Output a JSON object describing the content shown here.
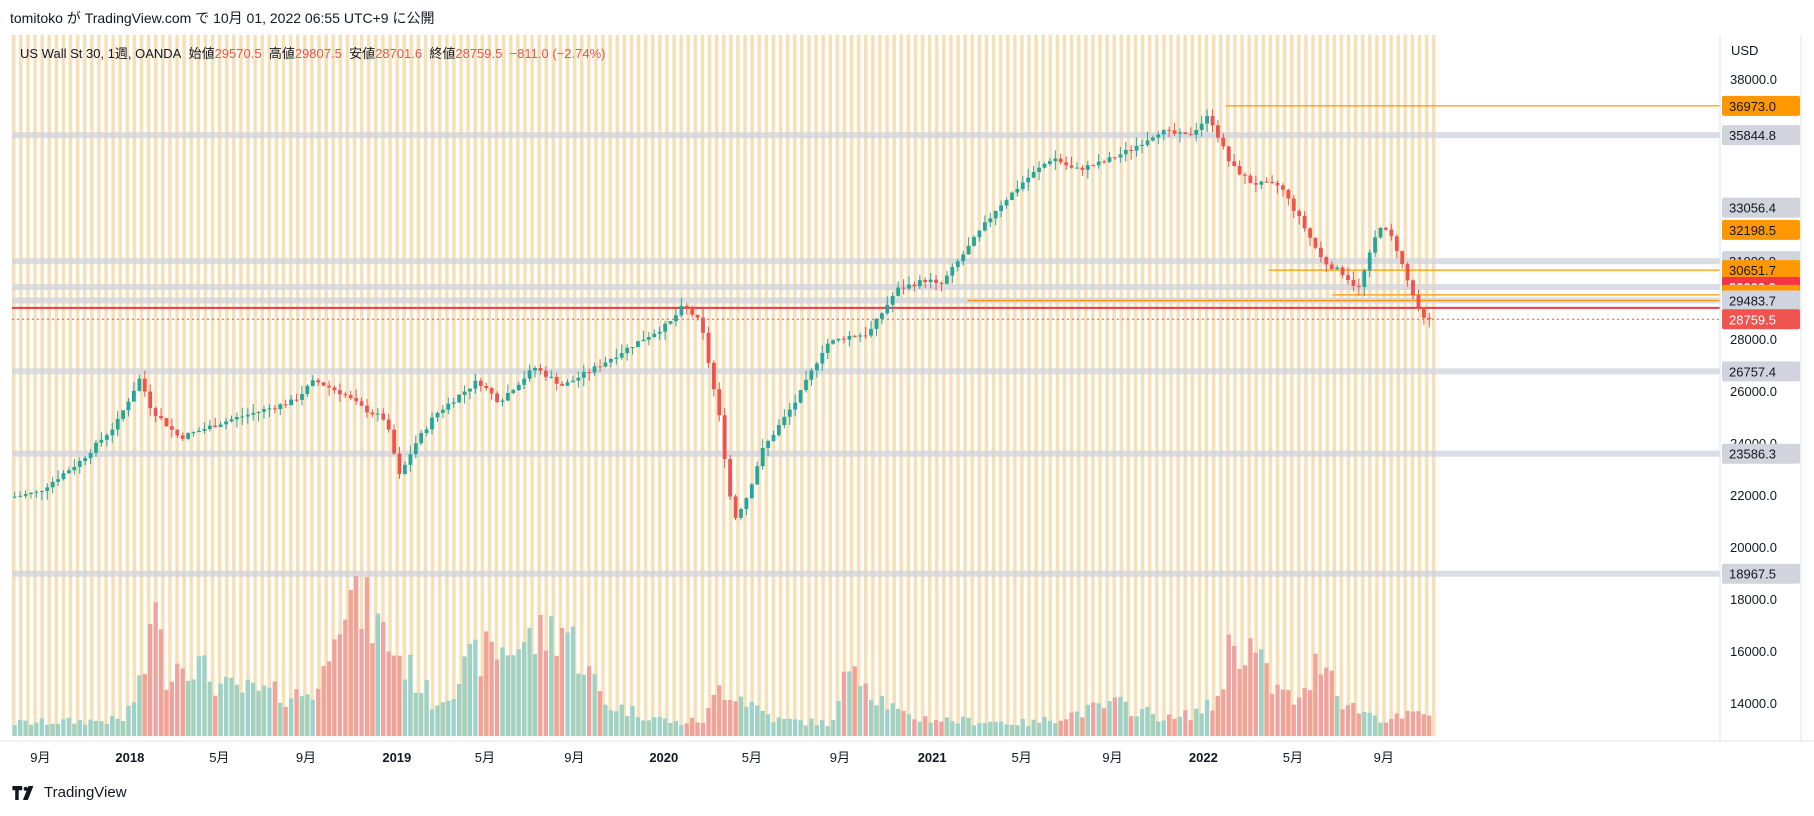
{
  "header": {
    "published_text": "tomitoko が TradingView.com で 10月 01, 2022 06:55 UTC+9 に公開"
  },
  "footer": {
    "brand": "TradingView"
  },
  "legend": {
    "symbol": "US Wall St 30, 1週, OANDA",
    "open_label": "始値",
    "open": "29570.5",
    "high_label": "高値",
    "high": "29807.5",
    "low_label": "安値",
    "low": "28701.6",
    "close_label": "終値",
    "close": "28759.5",
    "change": "−811.0 (−2.74%)"
  },
  "colors": {
    "up": "#26a69a",
    "down": "#ef5350",
    "up_volume": "#9ed2c6",
    "down_volume": "#f0a39d",
    "session_stripe": "#f6e0b5",
    "hline_gray": "#d1d4dc",
    "hline_orange": "#ff9800",
    "hline_red": "#f23645"
  },
  "chart_data": {
    "type": "candlestick",
    "currency": "USD",
    "ylim": [
      11800,
      39700
    ],
    "y_ticks": [
      "38000.0",
      "28000.0",
      "26000.0",
      "24000.0",
      "22000.0",
      "20000.0",
      "18000.0",
      "16000.0",
      "14000.0"
    ],
    "x_ticks": [
      {
        "label": "9月",
        "t": 0.02
      },
      {
        "label": "2018",
        "t": 0.083
      },
      {
        "label": "5月",
        "t": 0.146
      },
      {
        "label": "9月",
        "t": 0.207
      },
      {
        "label": "2019",
        "t": 0.271
      },
      {
        "label": "5月",
        "t": 0.333
      },
      {
        "label": "9月",
        "t": 0.396
      },
      {
        "label": "2020",
        "t": 0.459
      },
      {
        "label": "5月",
        "t": 0.521
      },
      {
        "label": "9月",
        "t": 0.583
      },
      {
        "label": "2021",
        "t": 0.648
      },
      {
        "label": "5月",
        "t": 0.711
      },
      {
        "label": "9月",
        "t": 0.775
      },
      {
        "label": "2022",
        "t": 0.839
      },
      {
        "label": "5月",
        "t": 0.902
      },
      {
        "label": "9月",
        "t": 0.966
      }
    ],
    "price_path": [
      [
        0,
        21900
      ],
      [
        0.02,
        22100
      ],
      [
        0.05,
        23300
      ],
      [
        0.075,
        24700
      ],
      [
        0.092,
        26500
      ],
      [
        0.1,
        25300
      ],
      [
        0.12,
        24200
      ],
      [
        0.15,
        24800
      ],
      [
        0.2,
        25600
      ],
      [
        0.215,
        26400
      ],
      [
        0.235,
        25900
      ],
      [
        0.25,
        25300
      ],
      [
        0.265,
        24900
      ],
      [
        0.275,
        22700
      ],
      [
        0.285,
        23900
      ],
      [
        0.3,
        25100
      ],
      [
        0.33,
        26400
      ],
      [
        0.345,
        25600
      ],
      [
        0.37,
        26900
      ],
      [
        0.39,
        26200
      ],
      [
        0.41,
        26800
      ],
      [
        0.44,
        27800
      ],
      [
        0.465,
        28600
      ],
      [
        0.475,
        29300
      ],
      [
        0.487,
        28600
      ],
      [
        0.5,
        25000
      ],
      [
        0.51,
        21000
      ],
      [
        0.52,
        22000
      ],
      [
        0.53,
        23700
      ],
      [
        0.555,
        25700
      ],
      [
        0.575,
        27800
      ],
      [
        0.59,
        28100
      ],
      [
        0.605,
        28200
      ],
      [
        0.625,
        29900
      ],
      [
        0.647,
        30300
      ],
      [
        0.655,
        30000
      ],
      [
        0.675,
        31500
      ],
      [
        0.695,
        33000
      ],
      [
        0.715,
        34100
      ],
      [
        0.735,
        35000
      ],
      [
        0.75,
        34500
      ],
      [
        0.77,
        34800
      ],
      [
        0.79,
        35300
      ],
      [
        0.81,
        36000
      ],
      [
        0.83,
        35800
      ],
      [
        0.845,
        36600
      ],
      [
        0.86,
        34700
      ],
      [
        0.875,
        34000
      ],
      [
        0.895,
        33900
      ],
      [
        0.91,
        32500
      ],
      [
        0.925,
        31000
      ],
      [
        0.94,
        30500
      ],
      [
        0.95,
        29900
      ],
      [
        0.965,
        32400
      ],
      [
        0.975,
        31800
      ],
      [
        0.985,
        30200
      ],
      [
        0.995,
        28760
      ]
    ],
    "volume_path": [
      [
        0,
        0.08
      ],
      [
        0.08,
        0.1
      ],
      [
        0.095,
        0.35
      ],
      [
        0.1,
        0.9
      ],
      [
        0.11,
        0.4
      ],
      [
        0.125,
        0.5
      ],
      [
        0.15,
        0.3
      ],
      [
        0.2,
        0.25
      ],
      [
        0.22,
        0.3
      ],
      [
        0.23,
        0.9
      ],
      [
        0.25,
        0.8
      ],
      [
        0.27,
        0.55
      ],
      [
        0.3,
        0.2
      ],
      [
        0.33,
        0.5
      ],
      [
        0.37,
        0.6
      ],
      [
        0.39,
        0.7
      ],
      [
        0.42,
        0.2
      ],
      [
        0.47,
        0.08
      ],
      [
        0.49,
        0.1
      ],
      [
        0.5,
        0.3
      ],
      [
        0.51,
        0.28
      ],
      [
        0.54,
        0.1
      ],
      [
        0.58,
        0.08
      ],
      [
        0.595,
        0.55
      ],
      [
        0.605,
        0.3
      ],
      [
        0.63,
        0.12
      ],
      [
        0.66,
        0.1
      ],
      [
        0.72,
        0.08
      ],
      [
        0.78,
        0.2
      ],
      [
        0.82,
        0.1
      ],
      [
        0.85,
        0.2
      ],
      [
        0.86,
        0.58
      ],
      [
        0.875,
        0.55
      ],
      [
        0.89,
        0.3
      ],
      [
        0.91,
        0.2
      ],
      [
        0.925,
        0.55
      ],
      [
        0.94,
        0.2
      ],
      [
        0.97,
        0.1
      ],
      [
        1,
        0.15
      ]
    ],
    "price_labels": [
      {
        "value": "36973.0",
        "price": 36973,
        "kind": "orange"
      },
      {
        "value": "35844.8",
        "price": 35844.8,
        "kind": "gray"
      },
      {
        "value": "33056.4",
        "price": 33056.4,
        "kind": "gray"
      },
      {
        "value": "32198.5",
        "price": 32198.5,
        "kind": "orange"
      },
      {
        "value": "31000.0",
        "price": 31000,
        "kind": "gray"
      },
      {
        "value": "30651.7",
        "price": 30651.7,
        "kind": "orange"
      },
      {
        "value": "30000.0",
        "price": 30000,
        "kind": "red"
      },
      {
        "value": "29699.4",
        "price": 29699.4,
        "kind": "orange"
      },
      {
        "value": "29483.7",
        "price": 29483.7,
        "kind": "gray"
      },
      {
        "value": "28759.5",
        "price": 28759.5,
        "kind": "last"
      },
      {
        "value": "26757.4",
        "price": 26757.4,
        "kind": "gray"
      },
      {
        "value": "23586.3",
        "price": 23586.3,
        "kind": "gray"
      },
      {
        "value": "18967.5",
        "price": 18967.5,
        "kind": "gray"
      }
    ],
    "horizontal_lines": [
      {
        "price": 35844.8,
        "from": 0,
        "style": "gray"
      },
      {
        "price": 31000,
        "from": 0,
        "style": "gray"
      },
      {
        "price": 29483.7,
        "from": 0,
        "style": "gray"
      },
      {
        "price": 26757.4,
        "from": 0,
        "style": "gray"
      },
      {
        "price": 23586.3,
        "from": 0,
        "style": "gray"
      },
      {
        "price": 18967.5,
        "from": 0,
        "style": "gray"
      },
      {
        "price": 30000,
        "from": 0,
        "style": "gray"
      },
      {
        "price": 29200,
        "from": 0,
        "style": "red"
      },
      {
        "price": 36973,
        "from": 0.855,
        "style": "orange"
      },
      {
        "price": 30651.7,
        "from": 0.885,
        "style": "orange"
      },
      {
        "price": 29699.4,
        "from": 0.93,
        "style": "orange"
      },
      {
        "price": 29483.7,
        "from": 0.673,
        "style": "orange"
      },
      {
        "price": 28759.5,
        "from": 0,
        "style": "last"
      }
    ]
  }
}
